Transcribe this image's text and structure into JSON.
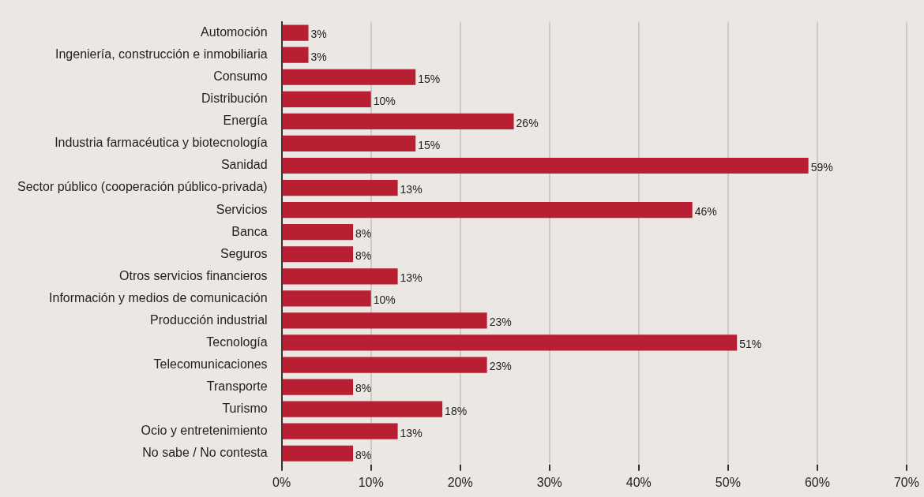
{
  "chart_data": {
    "type": "bar",
    "orientation": "horizontal",
    "categories": [
      "Automoción",
      "Ingeniería, construcción e inmobiliaria",
      "Consumo",
      "Distribución",
      "Energía",
      "Industria farmacéutica y biotecnología",
      "Sanidad",
      "Sector público (cooperación público-privada)",
      "Servicios",
      "Banca",
      "Seguros",
      "Otros servicios financieros",
      "Información y medios de comunicación",
      "Producción industrial",
      "Tecnología",
      "Telecomunicaciones",
      "Transporte",
      "Turismo",
      "Ocio y entretenimiento",
      "No sabe / No contesta"
    ],
    "values": [
      3,
      3,
      15,
      10,
      26,
      15,
      59,
      13,
      46,
      8,
      8,
      13,
      10,
      23,
      51,
      23,
      8,
      18,
      13,
      8
    ],
    "value_labels": [
      "3%",
      "3%",
      "15%",
      "10%",
      "26%",
      "15%",
      "59%",
      "13%",
      "46%",
      "8%",
      "8%",
      "13%",
      "10%",
      "23%",
      "51%",
      "23%",
      "8%",
      "18%",
      "13%",
      "8%"
    ],
    "color": "#b81f32",
    "xlim": [
      0,
      70
    ],
    "xticks": [
      {
        "value": 0,
        "label": "0%"
      },
      {
        "value": 10,
        "label": "10%"
      },
      {
        "value": 20,
        "label": "20%"
      },
      {
        "value": 30,
        "label": "30%"
      },
      {
        "value": 40,
        "label": "40%"
      },
      {
        "value": 50,
        "label": "50%"
      },
      {
        "value": 60,
        "label": "60%"
      },
      {
        "value": 70,
        "label": "70%"
      }
    ],
    "grid": "x",
    "legend": false
  }
}
